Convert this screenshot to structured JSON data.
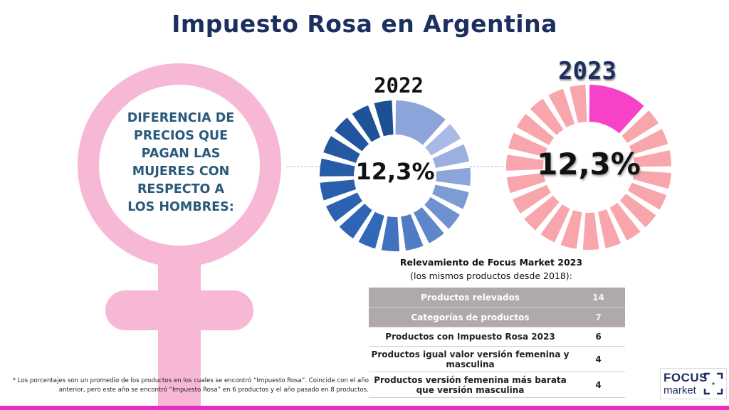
{
  "title": "Impuesto Rosa en Argentina",
  "description_lines": [
    "DIFERENCIA DE",
    "PRECIOS QUE",
    "PAGAN LAS",
    "MUJERES CON",
    "RESPECTO A",
    "LOS HOMBRES:"
  ],
  "colors": {
    "title": "#1d2f5f",
    "female_symbol": "#f7b8d6",
    "d2022_highlight": "#8ca4da",
    "d2022_rest": [
      "#1d4f93",
      "#3168b9",
      "#aab9e6"
    ],
    "d2023_highlight": "#f542c8",
    "d2023_rest": "#f8a6ac",
    "bottom_bar": "#e52fc2"
  },
  "chart_data": [
    {
      "type": "pie",
      "subtype": "donut",
      "title": "2022",
      "highlight_value": 12.3,
      "display_value": "12,3%",
      "unit": "%"
    },
    {
      "type": "pie",
      "subtype": "donut",
      "title": "2023",
      "highlight_value": 12.3,
      "display_value": "12,3%",
      "unit": "%"
    },
    {
      "type": "table",
      "title": "Relevamiento de Focus Market 2023",
      "subtitle": "(los mismos productos desde 2018):",
      "rows": [
        {
          "label": "Productos relevados",
          "value": "14",
          "header": true
        },
        {
          "label": "Categorías de productos",
          "value": "7",
          "header": true
        },
        {
          "label": "Productos con Impuesto Rosa 2023",
          "value": "6"
        },
        {
          "label": "Productos igual valor versión femenina y masculina",
          "value": "4"
        },
        {
          "label": "Productos versión femenina más barata que versión masculina",
          "value": "4"
        }
      ]
    }
  ],
  "footnote": "* Los porcentajes son un promedio de los productos en los cuales se encontró “Impuesto Rosa”. Coincide con el año anterior, pero este año se encontró “Impuesto Rosa” en 6 productos y el año pasado en 8 productos.",
  "logo": {
    "line1": "FOCUS",
    "line2": "market"
  }
}
